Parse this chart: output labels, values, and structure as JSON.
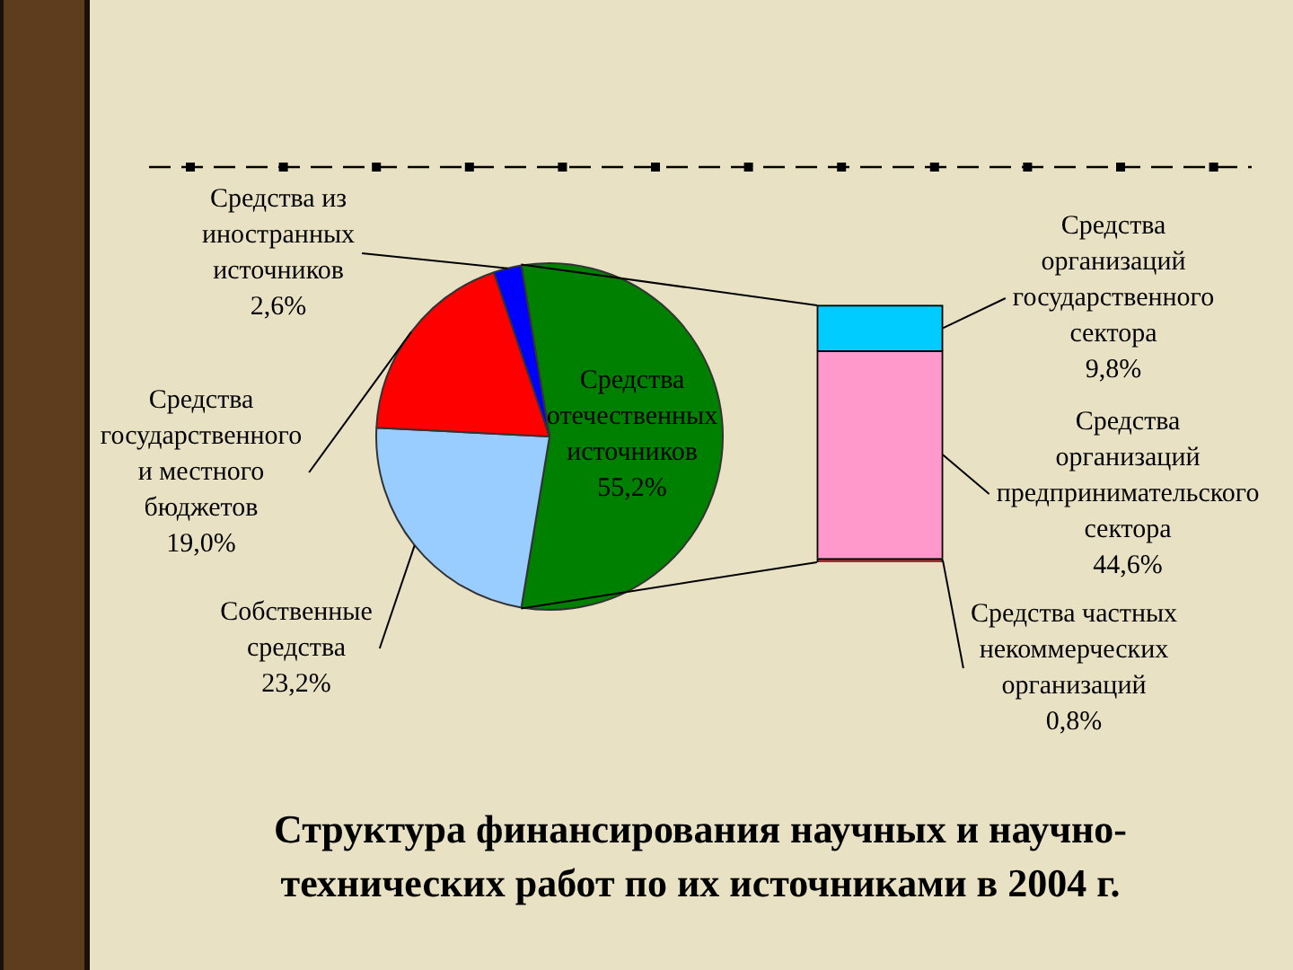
{
  "chart_data": [
    {
      "type": "pie",
      "title": "Структура финансирования научных и научно-технических работ по их источниками в 2004 г.",
      "categories": [
        "Средства отечественных источников",
        "Собственные средства",
        "Средства государственного и местного бюджетов",
        "Средства из иностранных источников"
      ],
      "values": [
        55.2,
        23.2,
        19.0,
        2.6
      ],
      "colors": [
        "#008000",
        "#99ccff",
        "#ff0000",
        "#0000ff"
      ],
      "value_labels": [
        "55,2%",
        "23,2%",
        "19,0%",
        "2,6%"
      ]
    },
    {
      "type": "other",
      "categories": [
        "Средства организаций государственного сектора",
        "Средства организаций предпринимательского сектора",
        "Средства частных некоммерческих организаций"
      ],
      "values": [
        9.8,
        44.6,
        0.8
      ],
      "colors": [
        "#00ccff",
        "#ff99cc",
        "#993333"
      ],
      "value_labels": [
        "9,8%",
        "44,6%",
        "0,8%"
      ]
    }
  ]
}
